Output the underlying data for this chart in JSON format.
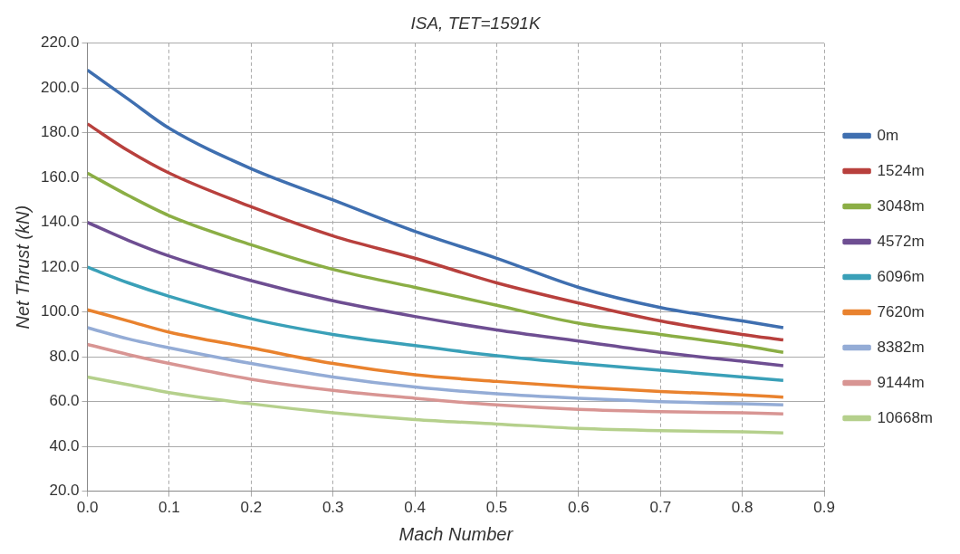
{
  "chart_data": {
    "type": "line",
    "title": "ISA, TET=1591K",
    "xlabel": "Mach Number",
    "ylabel": "Net Thrust (kN)",
    "x": [
      0,
      0.05,
      0.1,
      0.2,
      0.3,
      0.4,
      0.5,
      0.6,
      0.7,
      0.8,
      0.85
    ],
    "series": [
      {
        "name": "0m",
        "color": "#3f6fb0",
        "values": [
          208,
          195,
          182,
          164,
          150,
          136,
          124,
          111,
          102,
          96,
          93
        ]
      },
      {
        "name": "1524m",
        "color": "#b8403d",
        "values": [
          184,
          172,
          162,
          147,
          134,
          124,
          113,
          104,
          96,
          90,
          87.5
        ]
      },
      {
        "name": "3048m",
        "color": "#8bae45",
        "values": [
          162,
          152,
          143,
          130,
          119,
          111,
          103,
          95,
          90,
          85,
          82
        ]
      },
      {
        "name": "4572m",
        "color": "#6e4e92",
        "values": [
          140,
          132,
          125,
          114,
          105,
          98,
          92,
          87,
          82,
          78,
          76
        ]
      },
      {
        "name": "6096m",
        "color": "#3aa0b8",
        "values": [
          120,
          113,
          107,
          97,
          90,
          85,
          80.5,
          77,
          74,
          71,
          69.5
        ]
      },
      {
        "name": "7620m",
        "color": "#e9822e",
        "values": [
          101,
          96,
          91,
          84,
          77,
          72,
          69,
          66.5,
          64.5,
          63,
          62
        ]
      },
      {
        "name": "8382m",
        "color": "#94acd6",
        "values": [
          93,
          88,
          84,
          77,
          71,
          66.5,
          63.5,
          61.5,
          60,
          59,
          58.5
        ]
      },
      {
        "name": "9144m",
        "color": "#d89593",
        "values": [
          85.5,
          81,
          77,
          70,
          65,
          61.5,
          58.5,
          56.5,
          55.5,
          55,
          54.5
        ]
      },
      {
        "name": "10668m",
        "color": "#b5d08c",
        "values": [
          71,
          67.5,
          64,
          59,
          55,
          52,
          50,
          48,
          47,
          46.5,
          46
        ]
      }
    ],
    "xlim": [
      0,
      0.9
    ],
    "xticks": [
      {
        "value": 0,
        "label": "0.0"
      },
      0.1,
      0.2,
      0.3,
      0.4,
      0.5,
      0.6,
      0.7,
      0.8,
      0.9
    ],
    "ylim": [
      20,
      220
    ],
    "yticks": [
      {
        "value": 20,
        "label": "20.0"
      },
      {
        "value": 40,
        "label": "40.0"
      },
      {
        "value": 60,
        "label": "60.0"
      },
      {
        "value": 80,
        "label": "80.0"
      },
      {
        "value": 100,
        "label": "100.0"
      },
      {
        "value": 120,
        "label": "120.0"
      },
      {
        "value": 140,
        "label": "140.0"
      },
      {
        "value": 160,
        "label": "160.0"
      },
      {
        "value": 180,
        "label": "180.0"
      },
      {
        "value": 200,
        "label": "200.0"
      },
      {
        "value": 220,
        "label": "220.0"
      }
    ],
    "grid": true,
    "legend": "right",
    "marker": "none",
    "line_style": "solid"
  }
}
